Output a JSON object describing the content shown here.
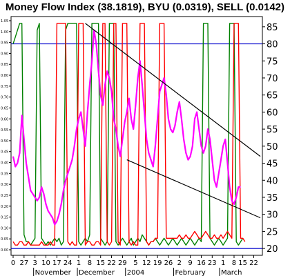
{
  "chart_data": {
    "type": "line",
    "title": "Money Flow Index (38.1819), BYU (0.0319), SELL (0.0142)",
    "xlabel": "",
    "ylabel": "",
    "ylim": [
      18,
      88
    ],
    "grid": false,
    "legend": "none",
    "y_ticks_right": [
      20,
      25,
      30,
      35,
      40,
      45,
      50,
      55,
      60,
      65,
      70,
      75,
      80,
      85
    ],
    "y_ticks_left": [
      "0.00",
      "0.05",
      "0.10",
      "0.15",
      "0.20",
      "0.25",
      "0.30",
      "0.35",
      "0.40",
      "0.45",
      "0.50",
      "0.55",
      "0.60",
      "0.65",
      "0.70",
      "0.75",
      "0.80",
      "0.85",
      "0.90",
      "0.95",
      "1.00",
      "1.05"
    ],
    "x_ticks": [
      {
        "i": 0,
        "label": "0"
      },
      {
        "i": 5,
        "label": "27"
      },
      {
        "i": 10,
        "label": "3"
      },
      {
        "i": 15,
        "label": "10"
      },
      {
        "i": 20,
        "label": "17"
      },
      {
        "i": 25,
        "label": "24"
      },
      {
        "i": 30,
        "label": "1"
      },
      {
        "i": 35,
        "label": "8"
      },
      {
        "i": 40,
        "label": "15"
      },
      {
        "i": 45,
        "label": "22"
      },
      {
        "i": 50,
        "label": "29"
      },
      {
        "i": 56,
        "label": "5"
      },
      {
        "i": 61,
        "label": "12"
      },
      {
        "i": 66,
        "label": "19"
      },
      {
        "i": 71,
        "label": "26"
      },
      {
        "i": 76,
        "label": "2"
      },
      {
        "i": 81,
        "label": "9"
      },
      {
        "i": 86,
        "label": "16"
      },
      {
        "i": 91,
        "label": "23"
      },
      {
        "i": 96,
        "label": "1"
      },
      {
        "i": 101,
        "label": "8"
      },
      {
        "i": 105,
        "label": "15"
      },
      {
        "i": 110,
        "label": "22"
      }
    ],
    "month_labels": [
      {
        "i": 10,
        "label": "November"
      },
      {
        "i": 30,
        "label": "December"
      },
      {
        "i": 52,
        "label": "2004"
      },
      {
        "i": 74,
        "label": "February"
      },
      {
        "i": 95,
        "label": "March"
      }
    ],
    "x_range": [
      0,
      113
    ],
    "reference_lines": [
      {
        "y": 80,
        "color": "#0000cc"
      },
      {
        "y": 20,
        "color": "#0000cc"
      }
    ],
    "trendlines": [
      {
        "from": {
          "i": 33,
          "y": 86
        },
        "to": {
          "i": 113,
          "y": 47
        },
        "color": "#000000"
      },
      {
        "from": {
          "i": 52,
          "y": 46
        },
        "to": {
          "i": 113,
          "y": 29
        },
        "color": "#000000"
      }
    ],
    "series": [
      {
        "color": "#ff00ff",
        "values": [
          47,
          44,
          45,
          48,
          59,
          52,
          45,
          41,
          37,
          36,
          35,
          34,
          35,
          38,
          36,
          33,
          31,
          30,
          29,
          27,
          28,
          30,
          33,
          37,
          40,
          42,
          44,
          46,
          50,
          55,
          58,
          60,
          55,
          50,
          60,
          68,
          75,
          84,
          80,
          72,
          65,
          62,
          68,
          72,
          70,
          66,
          58,
          55,
          50,
          47,
          52,
          57,
          60,
          64,
          58,
          55,
          62,
          70,
          75,
          68,
          60,
          52,
          48,
          46,
          44,
          50,
          58,
          66,
          68,
          70,
          65,
          58,
          55,
          54,
          56,
          60,
          63,
          58,
          52,
          48,
          46,
          47,
          50,
          58,
          60,
          55,
          50,
          48,
          50,
          55,
          52,
          46,
          40,
          38,
          42,
          46,
          50,
          52,
          45,
          38,
          34,
          33,
          35,
          38,
          38
        ]
      },
      {
        "color": "#008000",
        "values": [
          80,
          82,
          84,
          86,
          86,
          24,
          22,
          22,
          21,
          22,
          23,
          84,
          86,
          23,
          22,
          21,
          22,
          21,
          22,
          23,
          22,
          23,
          21,
          22,
          84,
          86,
          86,
          86,
          86,
          86,
          22,
          21,
          22,
          23,
          22,
          24,
          86,
          86,
          86,
          86,
          23,
          22,
          21,
          22,
          86,
          86,
          86,
          22,
          21,
          22,
          23,
          22,
          21,
          22,
          23,
          21,
          22,
          23,
          22,
          24,
          23,
          22,
          21,
          22,
          22,
          23,
          22,
          21,
          22,
          23,
          22,
          21,
          22,
          23,
          22,
          21,
          22,
          23,
          22,
          21,
          22,
          23,
          22,
          21,
          22,
          23,
          22,
          86,
          86,
          86,
          23,
          22,
          21,
          22,
          23,
          22,
          21,
          22,
          23,
          86,
          86,
          86,
          22,
          21,
          22,
          23
        ]
      },
      {
        "color": "#ff0000",
        "values": [
          22,
          21,
          21,
          22,
          22,
          21,
          21,
          22,
          21,
          21,
          21,
          21,
          21,
          22,
          21,
          21,
          21,
          22,
          21,
          21,
          86,
          86,
          86,
          86,
          86,
          22,
          21,
          22,
          21,
          21,
          86,
          86,
          86,
          21,
          22,
          22,
          21,
          21,
          22,
          22,
          21,
          86,
          86,
          22,
          21,
          22,
          86,
          86,
          22,
          21,
          86,
          86,
          86,
          22,
          21,
          22,
          21,
          21,
          86,
          86,
          86,
          22,
          21,
          22,
          22,
          23,
          23,
          86,
          86,
          86,
          23,
          23,
          23,
          23,
          23,
          23,
          24,
          23,
          23,
          24,
          23,
          23,
          24,
          25,
          24,
          23,
          23,
          24,
          25,
          24,
          23,
          23,
          24,
          23,
          23,
          24,
          23,
          24,
          25,
          24,
          23,
          86,
          86,
          86,
          23,
          23,
          22
        ]
      }
    ]
  }
}
